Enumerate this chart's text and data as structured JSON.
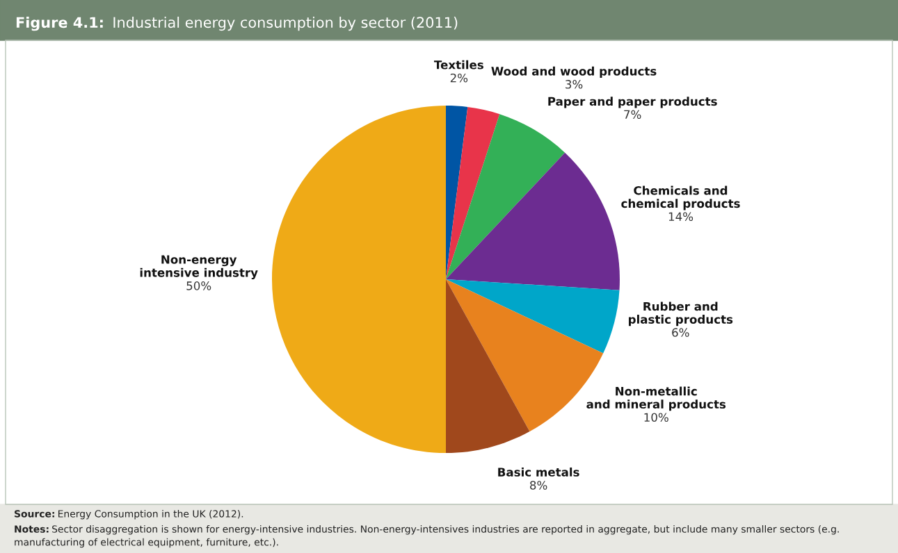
{
  "chart_data": {
    "type": "pie",
    "title": "Figure 4.1: Industrial energy consumption by sector (2011)",
    "categories": [
      "Textiles",
      "Wood and wood products",
      "Paper and paper products",
      "Chemicals and\nchemical products",
      "Rubber and\nplastic products",
      "Non-metallic\nand mineral products",
      "Basic metals",
      "Non-energy\nintensive industry"
    ],
    "values": [
      2,
      3,
      7,
      14,
      6,
      10,
      8,
      50
    ],
    "value_labels": [
      "2%",
      "3%",
      "7%",
      "14%",
      "6%",
      "10%",
      "8%",
      "50%"
    ],
    "colors": [
      "#0055a4",
      "#e8344a",
      "#33b057",
      "#6c2c91",
      "#00a6c9",
      "#e8821e",
      "#a0481c",
      "#efaa17"
    ],
    "annotations": [
      "Source: Energy Consumption in the UK (2012).",
      "Notes: Sector disaggregation is shown for energy-intensive industries. Non-energy-intensives industries are reported in aggregate, but include many smaller sectors (e.g. manufacturing of electrical equipment, furniture, etc.)."
    ]
  }
}
